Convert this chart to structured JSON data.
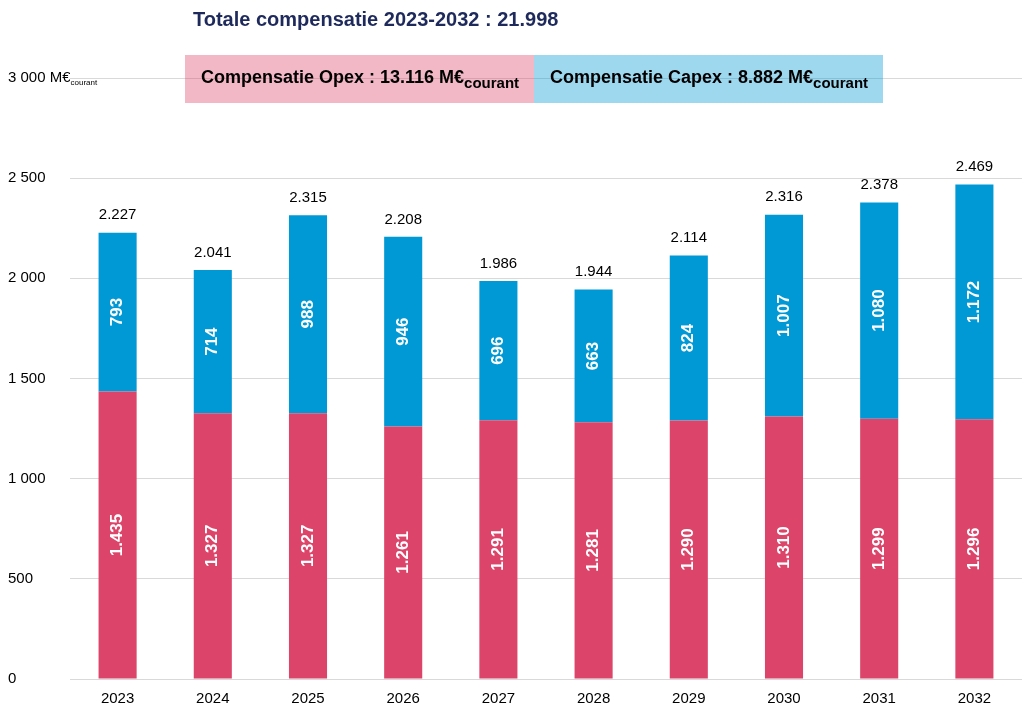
{
  "chart_data": {
    "type": "bar",
    "title": "Totale compensatie 2023-2032 : 21.998",
    "categories": [
      "2023",
      "2024",
      "2025",
      "2026",
      "2027",
      "2028",
      "2029",
      "2030",
      "2031",
      "2032"
    ],
    "series": [
      {
        "name": "Compensatie Opex : 13.116 M€$_{courant}$",
        "color": "#dc4469",
        "values": [
          1435,
          1327,
          1327,
          1261,
          1291,
          1281,
          1290,
          1310,
          1299,
          1296
        ],
        "value_labels": [
          "1.435",
          "1.327",
          "1.327",
          "1.261",
          "1.291",
          "1.281",
          "1.290",
          "1.310",
          "1.299",
          "1.296"
        ]
      },
      {
        "name": "Compensatie Capex : 8.882 M€$_{courant}$",
        "color": "#0099d6",
        "values": [
          793,
          714,
          988,
          946,
          696,
          663,
          824,
          1007,
          1080,
          1172
        ],
        "value_labels": [
          "793",
          "714",
          "988",
          "946",
          "696",
          "663",
          "824",
          "1.007",
          "1.080",
          "1.172"
        ]
      }
    ],
    "totals": [
      "2.227",
      "2.041",
      "2.315",
      "2.208",
      "1.986",
      "1.944",
      "2.114",
      "2.316",
      "2.378",
      "2.469"
    ],
    "stacked": true,
    "ylim": [
      0,
      3000
    ],
    "yticks": [
      {
        "value": 0,
        "label": "0"
      },
      {
        "value": 500,
        "label": "500"
      },
      {
        "value": 1000,
        "label": "1 000"
      },
      {
        "value": 1500,
        "label": "1 500"
      },
      {
        "value": 2000,
        "label": "2 000"
      },
      {
        "value": 2500,
        "label": "2 500"
      },
      {
        "value": 3000,
        "label": "3 000 M€$_{courant}$"
      }
    ],
    "grid": "y",
    "legend": "top"
  }
}
